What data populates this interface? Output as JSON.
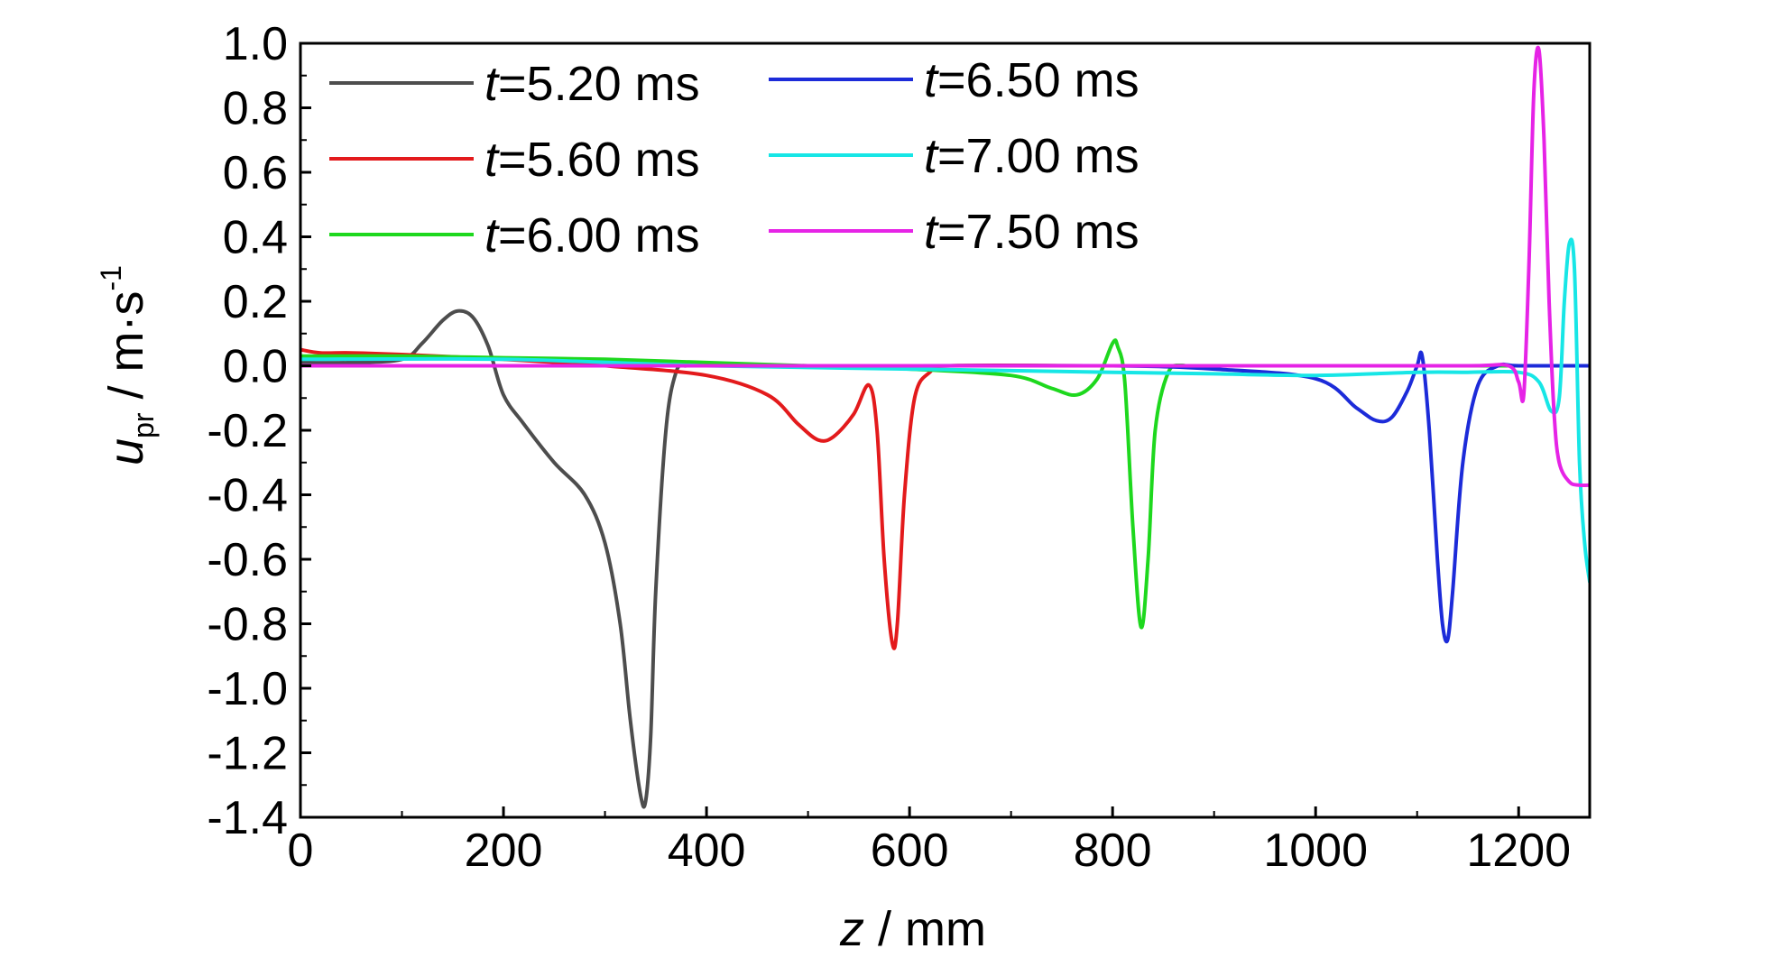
{
  "chart_data": {
    "type": "line",
    "xlabel": {
      "italic": "z",
      "rest": " / mm"
    },
    "ylabel": {
      "italic": "u",
      "sub": "pr",
      "rest": " / m·s",
      "sup": "-1"
    },
    "xlim": [
      0,
      1270
    ],
    "ylim": [
      -1.4,
      1.0
    ],
    "x_ticks": [
      "0",
      "200",
      "400",
      "600",
      "800",
      "1000",
      "1200"
    ],
    "x_tick_values": [
      0,
      200,
      400,
      600,
      800,
      1000,
      1200
    ],
    "y_ticks": [
      "1.0",
      "0.8",
      "0.6",
      "0.4",
      "0.2",
      "0.0",
      "-0.2",
      "-0.4",
      "-0.6",
      "-0.8",
      "-1.0",
      "-1.2",
      "-1.4"
    ],
    "y_tick_values": [
      1.0,
      0.8,
      0.6,
      0.4,
      0.2,
      0.0,
      -0.2,
      -0.4,
      -0.6,
      -0.8,
      -1.0,
      -1.2,
      -1.4
    ],
    "grid": false,
    "legend": {
      "placement": "top-left",
      "columns": 2
    },
    "series": [
      {
        "name": "t=5.20 ms",
        "name_italic": "t",
        "name_rest": "=5.20 ms",
        "color": "#4d4d4d",
        "x": [
          0,
          50,
          100,
          120,
          140,
          155,
          170,
          185,
          200,
          220,
          250,
          280,
          300,
          315,
          325,
          335,
          340,
          345,
          350,
          360,
          370,
          380,
          400,
          600,
          800,
          1000,
          1200,
          1270
        ],
        "y": [
          0.01,
          0.01,
          0.02,
          0.07,
          0.14,
          0.17,
          0.15,
          0.06,
          -0.09,
          -0.18,
          -0.3,
          -0.4,
          -0.55,
          -0.8,
          -1.1,
          -1.33,
          -1.35,
          -1.15,
          -0.7,
          -0.2,
          -0.02,
          0.0,
          0.0,
          0.0,
          0.0,
          0.0,
          0.0,
          0.0
        ]
      },
      {
        "name": "t=5.60 ms",
        "name_italic": "t",
        "name_rest": "=5.60 ms",
        "color": "#e31a1c",
        "x": [
          0,
          20,
          50,
          100,
          200,
          300,
          400,
          460,
          490,
          510,
          525,
          545,
          560,
          568,
          575,
          583,
          588,
          595,
          605,
          620,
          640,
          800,
          1000,
          1270
        ],
        "y": [
          0.05,
          0.04,
          0.04,
          0.035,
          0.02,
          0.0,
          -0.03,
          -0.09,
          -0.18,
          -0.23,
          -0.22,
          -0.15,
          -0.06,
          -0.2,
          -0.6,
          -0.86,
          -0.8,
          -0.4,
          -0.1,
          -0.02,
          0.0,
          0.0,
          0.0,
          0.0
        ]
      },
      {
        "name": "t=6.00 ms",
        "name_italic": "t",
        "name_rest": "=6.00 ms",
        "color": "#1ed81e",
        "x": [
          0,
          100,
          200,
          300,
          400,
          500,
          600,
          700,
          740,
          765,
          785,
          800,
          805,
          812,
          820,
          828,
          835,
          842,
          855,
          870,
          900,
          1270
        ],
        "y": [
          0.03,
          0.03,
          0.025,
          0.02,
          0.01,
          0.0,
          -0.01,
          -0.03,
          -0.07,
          -0.09,
          -0.04,
          0.07,
          0.06,
          -0.05,
          -0.5,
          -0.81,
          -0.6,
          -0.2,
          -0.02,
          0.0,
          0.0,
          0.0
        ]
      },
      {
        "name": "t=6.50 ms",
        "name_italic": "t",
        "name_rest": "=6.50 ms",
        "color": "#1c2bd9",
        "x": [
          0,
          200,
          400,
          600,
          800,
          900,
          1000,
          1040,
          1060,
          1075,
          1090,
          1100,
          1105,
          1112,
          1120,
          1125,
          1130,
          1135,
          1145,
          1160,
          1180,
          1200,
          1270
        ],
        "y": [
          0.0,
          0.0,
          0.0,
          0.0,
          0.0,
          -0.01,
          -0.04,
          -0.13,
          -0.17,
          -0.16,
          -0.08,
          0.0,
          0.03,
          -0.2,
          -0.6,
          -0.8,
          -0.85,
          -0.7,
          -0.3,
          -0.06,
          0.0,
          0.0,
          0.0
        ]
      },
      {
        "name": "t=7.00 ms",
        "name_italic": "t",
        "name_rest": "=7.00 ms",
        "color": "#17e6e6",
        "x": [
          0,
          200,
          400,
          600,
          800,
          900,
          1000,
          1100,
          1150,
          1200,
          1220,
          1232,
          1240,
          1245,
          1250,
          1255,
          1260,
          1265,
          1270
        ],
        "y": [
          0.02,
          0.02,
          0.0,
          -0.01,
          -0.02,
          -0.025,
          -0.03,
          -0.02,
          -0.02,
          -0.02,
          -0.05,
          -0.14,
          -0.1,
          0.2,
          0.38,
          0.3,
          -0.3,
          -0.55,
          -0.67
        ]
      },
      {
        "name": "t=7.50 ms",
        "name_italic": "t",
        "name_rest": "=7.50 ms",
        "color": "#e623e6",
        "x": [
          0,
          200,
          400,
          600,
          800,
          1000,
          1150,
          1190,
          1200,
          1205,
          1210,
          1215,
          1220,
          1225,
          1230,
          1235,
          1240,
          1250,
          1260,
          1270
        ],
        "y": [
          0.0,
          0.0,
          0.0,
          0.0,
          0.0,
          0.0,
          0.0,
          0.0,
          -0.05,
          -0.09,
          0.3,
          0.85,
          0.98,
          0.7,
          0.2,
          -0.15,
          -0.3,
          -0.36,
          -0.37,
          -0.37
        ]
      }
    ]
  }
}
